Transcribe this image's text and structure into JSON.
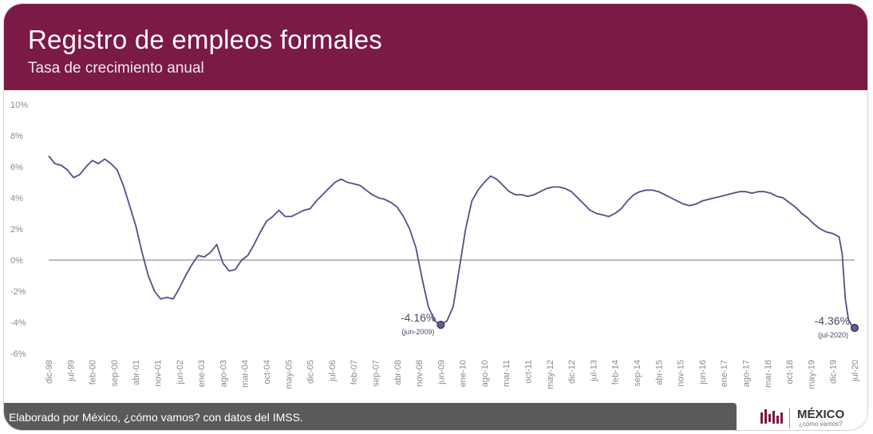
{
  "header": {
    "title": "Registro de empleos formales",
    "subtitle": "Tasa de crecimiento anual"
  },
  "footer": {
    "source": "Elaborado por México, ¿cómo vamos? con datos del IMSS."
  },
  "logo": {
    "icon": "bars-logo-icon",
    "wordmark": "MÉXICO",
    "tagline": "¿cómo vamos?"
  },
  "colors": {
    "header_bg": "#7a1a45",
    "line": "#5b4a8a",
    "footer_bg": "#5a5a5a",
    "zero_line": "#777777"
  },
  "chart_data": {
    "type": "line",
    "title": "Registro de empleos formales",
    "subtitle": "Tasa de crecimiento anual",
    "ylim": [
      -6,
      10
    ],
    "yticks": [
      -6,
      -4,
      -2,
      0,
      2,
      4,
      6,
      8,
      10
    ],
    "ytick_labels": [
      "-6%",
      "-4%",
      "-2%",
      "0%",
      "2%",
      "4%",
      "6%",
      "8%",
      "10%"
    ],
    "xlim_index": [
      0,
      259
    ],
    "xticks": [
      {
        "label": "dic-98",
        "i": 0
      },
      {
        "label": "jul-99",
        "i": 7
      },
      {
        "label": "feb-00",
        "i": 14
      },
      {
        "label": "sep-00",
        "i": 21
      },
      {
        "label": "abr-01",
        "i": 28
      },
      {
        "label": "nov-01",
        "i": 35
      },
      {
        "label": "jun-02",
        "i": 42
      },
      {
        "label": "ene-03",
        "i": 49
      },
      {
        "label": "ago-03",
        "i": 56
      },
      {
        "label": "mar-04",
        "i": 63
      },
      {
        "label": "oct-04",
        "i": 70
      },
      {
        "label": "may-05",
        "i": 77
      },
      {
        "label": "dic-05",
        "i": 84
      },
      {
        "label": "jul-06",
        "i": 91
      },
      {
        "label": "feb-07",
        "i": 98
      },
      {
        "label": "sep-07",
        "i": 105
      },
      {
        "label": "abr-08",
        "i": 112
      },
      {
        "label": "nov-08",
        "i": 119
      },
      {
        "label": "jun-09",
        "i": 126
      },
      {
        "label": "ene-10",
        "i": 133
      },
      {
        "label": "ago-10",
        "i": 140
      },
      {
        "label": "mar-11",
        "i": 147
      },
      {
        "label": "oct-11",
        "i": 154
      },
      {
        "label": "may-12",
        "i": 161
      },
      {
        "label": "dic-12",
        "i": 168
      },
      {
        "label": "jul-13",
        "i": 175
      },
      {
        "label": "feb-14",
        "i": 182
      },
      {
        "label": "sep-14",
        "i": 189
      },
      {
        "label": "abr-15",
        "i": 196
      },
      {
        "label": "nov-15",
        "i": 203
      },
      {
        "label": "jun-16",
        "i": 210
      },
      {
        "label": "ene-17",
        "i": 217
      },
      {
        "label": "ago-17",
        "i": 224
      },
      {
        "label": "mar-18",
        "i": 231
      },
      {
        "label": "oct-18",
        "i": 238
      },
      {
        "label": "may-19",
        "i": 245
      },
      {
        "label": "dic-19",
        "i": 252
      },
      {
        "label": "jul-20",
        "i": 259
      }
    ],
    "series": [
      {
        "points": [
          [
            0,
            6.7
          ],
          [
            2,
            6.2
          ],
          [
            4,
            6.1
          ],
          [
            6,
            5.8
          ],
          [
            8,
            5.3
          ],
          [
            10,
            5.5
          ],
          [
            12,
            6.0
          ],
          [
            14,
            6.4
          ],
          [
            16,
            6.2
          ],
          [
            18,
            6.5
          ],
          [
            20,
            6.2
          ],
          [
            22,
            5.8
          ],
          [
            24,
            4.8
          ],
          [
            26,
            3.5
          ],
          [
            28,
            2.2
          ],
          [
            30,
            0.5
          ],
          [
            32,
            -1.0
          ],
          [
            34,
            -2.0
          ],
          [
            36,
            -2.5
          ],
          [
            38,
            -2.4
          ],
          [
            40,
            -2.5
          ],
          [
            42,
            -1.8
          ],
          [
            44,
            -1.0
          ],
          [
            46,
            -0.3
          ],
          [
            48,
            0.3
          ],
          [
            50,
            0.2
          ],
          [
            52,
            0.5
          ],
          [
            54,
            1.0
          ],
          [
            56,
            -0.2
          ],
          [
            58,
            -0.7
          ],
          [
            60,
            -0.6
          ],
          [
            62,
            0.0
          ],
          [
            64,
            0.3
          ],
          [
            66,
            1.0
          ],
          [
            68,
            1.8
          ],
          [
            70,
            2.5
          ],
          [
            72,
            2.8
          ],
          [
            74,
            3.2
          ],
          [
            76,
            2.8
          ],
          [
            78,
            2.8
          ],
          [
            80,
            3.0
          ],
          [
            82,
            3.2
          ],
          [
            84,
            3.3
          ],
          [
            86,
            3.8
          ],
          [
            88,
            4.2
          ],
          [
            90,
            4.6
          ],
          [
            92,
            5.0
          ],
          [
            94,
            5.2
          ],
          [
            96,
            5.0
          ],
          [
            98,
            4.9
          ],
          [
            100,
            4.8
          ],
          [
            102,
            4.5
          ],
          [
            104,
            4.2
          ],
          [
            106,
            4.0
          ],
          [
            108,
            3.9
          ],
          [
            110,
            3.7
          ],
          [
            112,
            3.4
          ],
          [
            114,
            2.8
          ],
          [
            116,
            2.0
          ],
          [
            118,
            0.8
          ],
          [
            120,
            -1.2
          ],
          [
            122,
            -3.0
          ],
          [
            124,
            -3.9
          ],
          [
            126,
            -4.16
          ],
          [
            128,
            -3.9
          ],
          [
            130,
            -3.0
          ],
          [
            132,
            -0.5
          ],
          [
            134,
            2.0
          ],
          [
            136,
            3.8
          ],
          [
            138,
            4.5
          ],
          [
            140,
            5.0
          ],
          [
            142,
            5.4
          ],
          [
            144,
            5.2
          ],
          [
            146,
            4.8
          ],
          [
            148,
            4.4
          ],
          [
            150,
            4.2
          ],
          [
            152,
            4.2
          ],
          [
            154,
            4.1
          ],
          [
            156,
            4.2
          ],
          [
            158,
            4.4
          ],
          [
            160,
            4.6
          ],
          [
            162,
            4.7
          ],
          [
            164,
            4.7
          ],
          [
            166,
            4.6
          ],
          [
            168,
            4.4
          ],
          [
            170,
            4.0
          ],
          [
            172,
            3.6
          ],
          [
            174,
            3.2
          ],
          [
            176,
            3.0
          ],
          [
            178,
            2.9
          ],
          [
            180,
            2.8
          ],
          [
            182,
            3.0
          ],
          [
            184,
            3.3
          ],
          [
            186,
            3.8
          ],
          [
            188,
            4.2
          ],
          [
            190,
            4.4
          ],
          [
            192,
            4.5
          ],
          [
            194,
            4.5
          ],
          [
            196,
            4.4
          ],
          [
            198,
            4.2
          ],
          [
            200,
            4.0
          ],
          [
            202,
            3.8
          ],
          [
            204,
            3.6
          ],
          [
            206,
            3.5
          ],
          [
            208,
            3.6
          ],
          [
            210,
            3.8
          ],
          [
            212,
            3.9
          ],
          [
            214,
            4.0
          ],
          [
            216,
            4.1
          ],
          [
            218,
            4.2
          ],
          [
            220,
            4.3
          ],
          [
            222,
            4.4
          ],
          [
            224,
            4.4
          ],
          [
            226,
            4.3
          ],
          [
            228,
            4.4
          ],
          [
            230,
            4.4
          ],
          [
            232,
            4.3
          ],
          [
            234,
            4.1
          ],
          [
            236,
            4.0
          ],
          [
            238,
            3.7
          ],
          [
            240,
            3.4
          ],
          [
            242,
            3.0
          ],
          [
            244,
            2.7
          ],
          [
            246,
            2.3
          ],
          [
            248,
            2.0
          ],
          [
            250,
            1.8
          ],
          [
            252,
            1.7
          ],
          [
            254,
            1.5
          ],
          [
            255,
            0.4
          ],
          [
            256,
            -2.5
          ],
          [
            257,
            -3.8
          ],
          [
            258,
            -4.2
          ],
          [
            259,
            -4.36
          ]
        ]
      }
    ],
    "annotations": [
      {
        "i": 126,
        "y": -4.16,
        "value_label": "-4.16%",
        "date_label": "(jun-2009)"
      },
      {
        "i": 259,
        "y": -4.36,
        "value_label": "-4.36%",
        "date_label": "(jul-2020)"
      }
    ],
    "grid": false,
    "zero_line": true,
    "legend": "none"
  }
}
